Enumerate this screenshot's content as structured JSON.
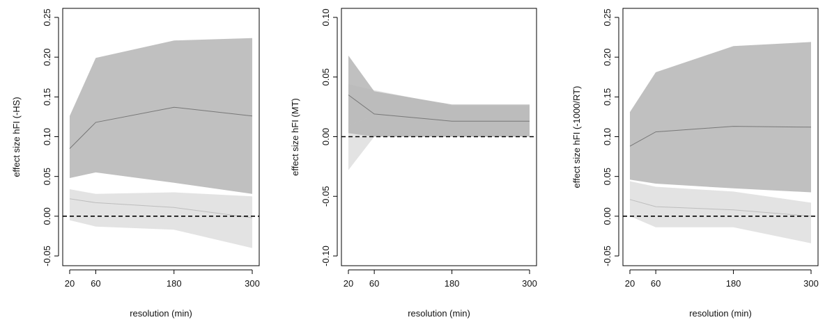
{
  "colors": {
    "outer_band": "#e3e3e3",
    "inner_band": "#b5b5b5",
    "overlap_band": "#a9a9a9",
    "series_line": "#777777",
    "zero_line": "#000000",
    "axis": "#000000"
  },
  "chart_data": [
    {
      "type": "area",
      "title": "",
      "xlabel": "resolution (min)",
      "ylabel": "effect size hFI (-HS)",
      "x": [
        20,
        60,
        180,
        300
      ],
      "xticks": [
        "20",
        "60",
        "180",
        "300"
      ],
      "ylim": [
        -0.05,
        0.25
      ],
      "yticks": [
        "-0.05",
        "0.00",
        "0.05",
        "0.10",
        "0.15",
        "0.20",
        "0.25"
      ],
      "grid": false,
      "reference_line": 0,
      "series": [
        {
          "role": "upper",
          "values": [
            0.085,
            0.118,
            0.137,
            0.126
          ],
          "lower": [
            0.048,
            0.055,
            0.042,
            0.028
          ],
          "upper": [
            0.126,
            0.199,
            0.221,
            0.224
          ]
        },
        {
          "role": "lower",
          "values": [
            0.022,
            0.017,
            0.011,
            -0.002
          ],
          "lower": [
            -0.005,
            -0.013,
            -0.017,
            -0.04
          ],
          "upper": [
            0.034,
            0.028,
            0.03,
            0.025
          ]
        }
      ]
    },
    {
      "type": "area",
      "title": "",
      "xlabel": "resolution (min)",
      "ylabel": "effect size hFI (MT)",
      "x": [
        20,
        60,
        180,
        300
      ],
      "xticks": [
        "20",
        "60",
        "180",
        "300"
      ],
      "ylim": [
        -0.1,
        0.1
      ],
      "yticks": [
        "-0.10",
        "-0.05",
        "0.00",
        "0.05",
        "0.10"
      ],
      "grid": false,
      "reference_line": 0,
      "series": [
        {
          "role": "upper",
          "values": [
            0.035,
            0.019,
            0.013,
            0.013
          ],
          "lower": [
            0.003,
            0.0,
            0.0,
            0.0
          ],
          "upper": [
            0.068,
            0.038,
            0.027,
            0.027
          ]
        },
        {
          "role": "lower",
          "values": [
            0.009,
            0.018,
            0.013,
            0.013
          ],
          "lower": [
            -0.028,
            0.0,
            0.0,
            0.0
          ],
          "upper": [
            0.044,
            0.039,
            0.026,
            0.026
          ]
        }
      ]
    },
    {
      "type": "area",
      "title": "",
      "xlabel": "resolution (min)",
      "ylabel": "effect size hFI (-1000/RT)",
      "x": [
        20,
        60,
        180,
        300
      ],
      "xticks": [
        "20",
        "60",
        "180",
        "300"
      ],
      "ylim": [
        -0.05,
        0.25
      ],
      "yticks": [
        "-0.05",
        "0.00",
        "0.05",
        "0.10",
        "0.15",
        "0.20",
        "0.25"
      ],
      "grid": false,
      "reference_line": 0,
      "series": [
        {
          "role": "upper",
          "values": [
            0.088,
            0.106,
            0.113,
            0.112
          ],
          "lower": [
            0.046,
            0.041,
            0.035,
            0.03
          ],
          "upper": [
            0.131,
            0.181,
            0.214,
            0.219
          ]
        },
        {
          "role": "lower",
          "values": [
            0.021,
            0.012,
            0.008,
            0.0
          ],
          "lower": [
            0.0,
            -0.014,
            -0.014,
            -0.034
          ],
          "upper": [
            0.044,
            0.037,
            0.031,
            0.017
          ]
        }
      ]
    }
  ]
}
